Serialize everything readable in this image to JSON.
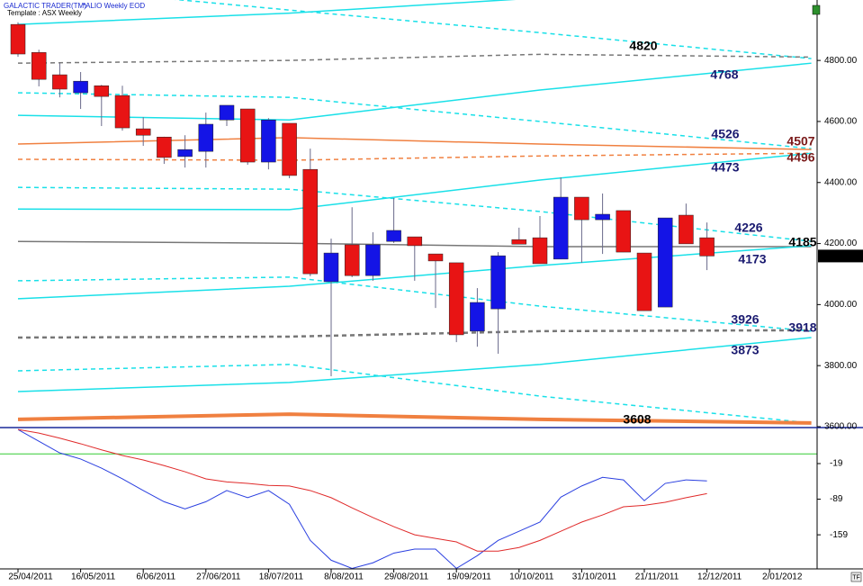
{
  "header": {
    "app": "GALACTIC TRADER(TM)",
    "symbol": "*ALIO Weekly EOD",
    "template": "Template : ASX Weekly"
  },
  "chart_data": [
    {
      "type": "candlestick",
      "x": [
        "25/04/2011",
        "2/05/2011",
        "9/05/2011",
        "16/05/2011",
        "23/05/2011",
        "30/05/2011",
        "6/06/2011",
        "13/06/2011",
        "20/06/2011",
        "27/06/2011",
        "4/07/2011",
        "11/07/2011",
        "18/07/2011",
        "25/07/2011",
        "1/08/2011",
        "8/08/2011",
        "15/08/2011",
        "22/08/2011",
        "29/08/2011",
        "5/09/2011",
        "12/09/2011",
        "19/09/2011",
        "26/09/2011",
        "3/10/2011",
        "10/10/2011",
        "17/10/2011",
        "24/10/2011",
        "31/10/2011",
        "7/11/2011",
        "14/11/2011",
        "21/11/2011",
        "28/11/2011",
        "5/12/2011",
        "12/12/2011"
      ],
      "open": [
        4918,
        4826,
        4753,
        4694,
        4717,
        4685,
        4576,
        4549,
        4485,
        4502,
        4605,
        4641,
        4467,
        4594,
        4443,
        4075,
        4196,
        4095,
        4207,
        4222,
        4166,
        4137,
        3913,
        3986,
        4213,
        4219,
        4149,
        4352,
        4278,
        4308,
        4169,
        3992,
        4293,
        4219
      ],
      "high": [
        4925,
        4835,
        4791,
        4762,
        4720,
        4717,
        4614,
        4550,
        4555,
        4629,
        4653,
        4641,
        4611,
        4594,
        4511,
        4216,
        4319,
        4237,
        4349,
        4222,
        4166,
        4137,
        4054,
        4172,
        4252,
        4290,
        4417,
        4352,
        4364,
        4308,
        4169,
        4284,
        4331,
        4269
      ],
      "low": [
        4812,
        4715,
        4679,
        4641,
        4585,
        4570,
        4520,
        4461,
        4449,
        4449,
        4585,
        4458,
        4443,
        4414,
        4093,
        3765,
        4090,
        4078,
        4202,
        4078,
        3989,
        3877,
        3862,
        3839,
        4198,
        4134,
        4149,
        4137,
        4166,
        4172,
        3980,
        3992,
        4199,
        4113
      ],
      "close": [
        4821,
        4738,
        4706,
        4732,
        4682,
        4579,
        4555,
        4482,
        4508,
        4591,
        4653,
        4467,
        4605,
        4423,
        4101,
        4169,
        4095,
        4196,
        4243,
        4193,
        4143,
        3901,
        4007,
        4160,
        4198,
        4134,
        4352,
        4278,
        4296,
        4172,
        3980,
        4284,
        4199,
        4159.2
      ],
      "up_color": "#1414e6",
      "down_color": "#e81414",
      "ylim": [
        3600,
        4998
      ],
      "yticks": [
        {
          "value": 3600,
          "label": "3600.00"
        },
        {
          "value": 3800,
          "label": "3800.00"
        },
        {
          "value": 4000,
          "label": "4000.00"
        },
        {
          "value": 4200,
          "label": "4200.00"
        },
        {
          "value": 4400,
          "label": "4400.00"
        },
        {
          "value": 4600,
          "label": "4600.00"
        },
        {
          "value": 4800,
          "label": "4800.00"
        }
      ],
      "xticks": [
        "25/04/2011",
        "16/05/2011",
        "6/06/2011",
        "27/06/2011",
        "18/07/2011",
        "8/08/2011",
        "29/08/2011",
        "19/09/2011",
        "10/10/2011",
        "31/10/2011",
        "21/11/2011",
        "12/12/2011",
        "2/01/2012"
      ],
      "last_price": {
        "value": 4159.2,
        "label": "4159.20"
      },
      "overlay_x": [
        "25/04/2011",
        "25/07/2011",
        "17/10/2011",
        "16/01/2012"
      ],
      "overlays": [
        {
          "color": "#19e0e8",
          "dash": false,
          "values": [
            4918,
            4955,
            5005,
            null
          ]
        },
        {
          "color": "#19e0e8",
          "dash": true,
          "values": [
            5048,
            4965,
            4891,
            4806
          ]
        },
        {
          "color": "#777777",
          "dash": true,
          "values": [
            4791,
            4800,
            4820,
            4811
          ],
          "label": 4820
        },
        {
          "color": "#19e0e8",
          "dash": false,
          "values": [
            4620,
            4605,
            4703,
            4791
          ],
          "label": 4768
        },
        {
          "color": "#19e0e8",
          "dash": true,
          "values": [
            4694,
            4679,
            4600,
            4511
          ],
          "label": 4526
        },
        {
          "color": "#f08040",
          "dash": false,
          "values": [
            4526,
            4547,
            4526,
            4508
          ],
          "label": 4507
        },
        {
          "color": "#f08040",
          "dash": true,
          "values": [
            4476,
            4473,
            4487,
            4496
          ],
          "label": 4496
        },
        {
          "color": "#19e0e8",
          "dash": false,
          "values": [
            4313,
            4311,
            4408,
            4496
          ],
          "label": 4473
        },
        {
          "color": "#19e0e8",
          "dash": true,
          "values": [
            4384,
            4378,
            4305,
            4207
          ],
          "label": 4226
        },
        {
          "color": "#777777",
          "dash": false,
          "values": [
            4207,
            4201,
            4190,
            4190
          ],
          "label": 4185
        },
        {
          "color": "#19e0e8",
          "dash": false,
          "values": [
            4019,
            4060,
            4128,
            4193
          ],
          "label": 4173
        },
        {
          "color": "#19e0e8",
          "dash": true,
          "values": [
            4078,
            4090,
            3995,
            3913
          ],
          "label": 3926
        },
        {
          "color": "#777777",
          "dash": true,
          "values": [
            3892,
            3895,
            3913,
            3916
          ],
          "label": 3918
        },
        {
          "color": "#19e0e8",
          "dash": false,
          "values": [
            3715,
            3745,
            3804,
            3892
          ],
          "label": 3873
        },
        {
          "color": "#19e0e8",
          "dash": true,
          "values": [
            3783,
            3804,
            3700,
            3612
          ]
        },
        {
          "color": "#f08040",
          "dash": false,
          "values": [
            3624,
            3641,
            3624,
            3612
          ],
          "label": 3608
        }
      ]
    },
    {
      "type": "line",
      "x": [
        "25/04/2011",
        "2/05/2011",
        "9/05/2011",
        "16/05/2011",
        "23/05/2011",
        "30/05/2011",
        "6/06/2011",
        "13/06/2011",
        "20/06/2011",
        "27/06/2011",
        "4/07/2011",
        "11/07/2011",
        "18/07/2011",
        "25/07/2011",
        "1/08/2011",
        "8/08/2011",
        "15/08/2011",
        "22/08/2011",
        "29/08/2011",
        "5/09/2011",
        "12/09/2011",
        "19/09/2011",
        "26/09/2011",
        "3/10/2011",
        "10/10/2011",
        "17/10/2011",
        "24/10/2011",
        "31/10/2011",
        "7/11/2011",
        "14/11/2011",
        "21/11/2011",
        "28/11/2011",
        "5/12/2011",
        "12/12/2011"
      ],
      "ylim": [
        -226,
        50
      ],
      "yticks": [
        -159,
        -89,
        -19
      ],
      "hline": {
        "value": 0,
        "color": "#33cc33"
      },
      "series": [
        {
          "color": "#2a3fe0",
          "values": [
            48,
            25,
            2,
            -10,
            -28,
            -49,
            -72,
            -94,
            -108,
            -94,
            -72,
            -86,
            -72,
            -99,
            -170,
            -209,
            -225,
            -214,
            -195,
            -187,
            -187,
            -225,
            -200,
            -170,
            -152,
            -134,
            -85,
            -63,
            -46,
            -51,
            -92,
            -58,
            -51,
            -53
          ]
        },
        {
          "color": "#e02a2a",
          "values": [
            48,
            41,
            31,
            20,
            8,
            -3,
            -12,
            -23,
            -35,
            -49,
            -55,
            -58,
            -62,
            -63,
            -72,
            -86,
            -106,
            -125,
            -143,
            -159,
            -166,
            -173,
            -191,
            -191,
            -184,
            -170,
            -152,
            -134,
            -120,
            -104,
            -101,
            -95,
            -86,
            -78
          ]
        }
      ]
    }
  ]
}
